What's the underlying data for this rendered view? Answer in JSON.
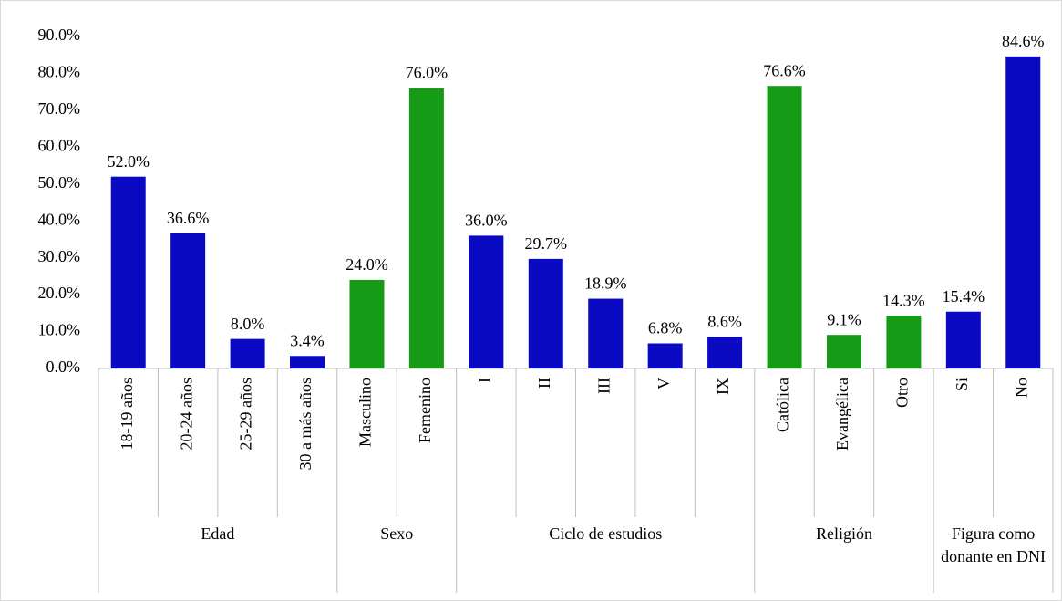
{
  "chart_data": {
    "type": "bar",
    "groups": [
      {
        "name": "Edad",
        "color": "#0a0ac2",
        "categories": [
          "18-19 años",
          "20-24 años",
          "25-29 años",
          "30 a más años"
        ],
        "values": [
          52.0,
          36.6,
          8.0,
          3.4
        ],
        "value_labels": [
          "52.0%",
          "36.6%",
          "8.0%",
          "3.4%"
        ]
      },
      {
        "name": "Sexo",
        "color": "#159b15",
        "categories": [
          "Masculino",
          "Femenino"
        ],
        "values": [
          24.0,
          76.0
        ],
        "value_labels": [
          "24.0%",
          "76.0%"
        ]
      },
      {
        "name": "Ciclo de estudios",
        "color": "#0a0ac2",
        "categories": [
          "I",
          "II",
          "III",
          "V",
          "IX"
        ],
        "values": [
          36.0,
          29.7,
          18.9,
          6.8,
          8.6
        ],
        "value_labels": [
          "36.0%",
          "29.7%",
          "18.9%",
          "6.8%",
          "8.6%"
        ]
      },
      {
        "name": "Religión",
        "color": "#159b15",
        "categories": [
          "Católica",
          "Evangélica",
          "Otro"
        ],
        "values": [
          76.6,
          9.1,
          14.3
        ],
        "value_labels": [
          "76.6%",
          "9.1%",
          "14.3%"
        ]
      },
      {
        "name": "Figura como donante en DNI",
        "color": "#0a0ac2",
        "categories": [
          "Si",
          "No"
        ],
        "values": [
          15.4,
          84.6
        ],
        "value_labels": [
          "15.4%",
          "84.6%"
        ]
      }
    ],
    "ylim": [
      0,
      90
    ],
    "yticks": [
      {
        "value": 0,
        "label": "0.0%"
      },
      {
        "value": 10,
        "label": "10.0%"
      },
      {
        "value": 20,
        "label": "20.0%"
      },
      {
        "value": 30,
        "label": "30.0%"
      },
      {
        "value": 40,
        "label": "40.0%"
      },
      {
        "value": 50,
        "label": "50.0%"
      },
      {
        "value": 60,
        "label": "60.0%"
      },
      {
        "value": 70,
        "label": "70.0%"
      },
      {
        "value": 80,
        "label": "80.0%"
      },
      {
        "value": 90,
        "label": "90.0%"
      }
    ],
    "grid": false
  }
}
